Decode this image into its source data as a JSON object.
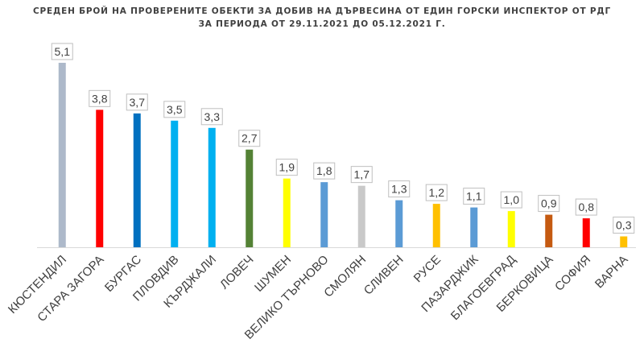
{
  "chart_data": {
    "type": "bar",
    "title": "СРЕДЕН БРОЙ НА ПРОВЕРЕНИТЕ ОБЕКТИ ЗА ДОБИВ НА ДЪРВЕСИНА ОТ ЕДИН ГОРСКИ ИНСПЕКТОР ОТ РДГ",
    "subtitle": "ЗА ПЕРИОДА ОТ 29.11.2021 ДО 05.12.2021 Г.",
    "categories": [
      "КЮСТЕНДИЛ",
      "СТАРА ЗАГОРА",
      "БУРГАС",
      "ПЛОВДИВ",
      "КЪРДЖАЛИ",
      "ЛОВЕЧ",
      "ШУМЕН",
      "ВЕЛИКО ТЪРНОВО",
      "СМОЛЯН",
      "СЛИВЕН",
      "РУСЕ",
      "ПАЗАРДЖИК",
      "БЛАГОЕВГРАД",
      "БЕРКОВИЦА",
      "СОФИЯ",
      "ВАРНА"
    ],
    "values": [
      5.1,
      3.8,
      3.7,
      3.5,
      3.3,
      2.7,
      1.9,
      1.8,
      1.7,
      1.3,
      1.2,
      1.1,
      1.0,
      0.9,
      0.8,
      0.3
    ],
    "value_labels": [
      "5,1",
      "3,8",
      "3,7",
      "3,5",
      "3,3",
      "2,7",
      "1,9",
      "1,8",
      "1,7",
      "1,3",
      "1,2",
      "1,1",
      "1,0",
      "0,9",
      "0,8",
      "0,3"
    ],
    "colors": [
      "#adb9ca",
      "#ff0000",
      "#0070c0",
      "#00b0f0",
      "#00b0f0",
      "#548235",
      "#ffff00",
      "#5b9bd5",
      "#c9c9c9",
      "#5b9bd5",
      "#ffc000",
      "#5b9bd5",
      "#ffff00",
      "#c55a11",
      "#ff0000",
      "#ffc000"
    ],
    "xlabel": "",
    "ylabel": "",
    "ylim": [
      0,
      5.5
    ],
    "grid": false,
    "legend": "none"
  }
}
